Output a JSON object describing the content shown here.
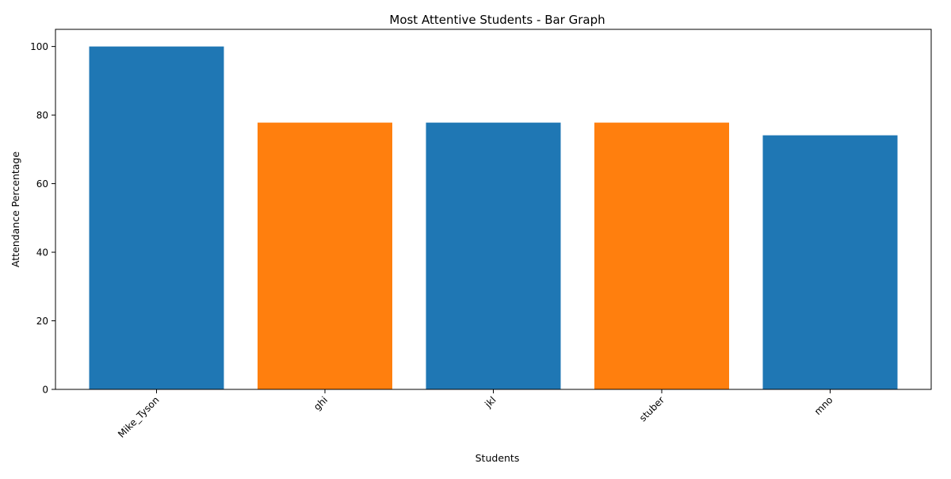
{
  "chart_data": {
    "type": "bar",
    "title": "Most Attentive Students - Bar Graph",
    "xlabel": "Students",
    "ylabel": "Attendance Percentage",
    "categories": [
      "Mike_Tyson",
      "ghi",
      "jkl",
      "stuber",
      "mno"
    ],
    "values": [
      100,
      77.8,
      77.8,
      77.8,
      74.1
    ],
    "colors": [
      "#1f77b4",
      "#ff7f0e",
      "#1f77b4",
      "#ff7f0e",
      "#1f77b4"
    ],
    "ylim": [
      0,
      105
    ],
    "yticks": [
      0,
      20,
      40,
      60,
      80,
      100
    ],
    "ytick_labels": [
      "0",
      "20",
      "40",
      "60",
      "80",
      "100"
    ],
    "grid": false,
    "xtick_rotation": "45 degrees, right-aligned"
  }
}
